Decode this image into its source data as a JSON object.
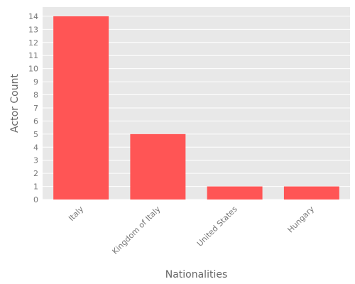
{
  "chart_data": {
    "type": "bar",
    "title": "",
    "xlabel": "Nationalities",
    "ylabel": "Actor Count",
    "categories": [
      "Italy",
      "Kingdom of Italy",
      "United States",
      "Hungary"
    ],
    "values": [
      14,
      5,
      1,
      1
    ],
    "ylim": [
      0,
      14.7
    ],
    "yticks": [
      0,
      1,
      2,
      3,
      4,
      5,
      6,
      7,
      8,
      9,
      10,
      11,
      12,
      13,
      14
    ],
    "grid": true,
    "legend": "none",
    "colors": {
      "bar": "#ff5555",
      "panel_background": "#e8e8e8",
      "grid": "#ffffff",
      "tick_text": "#777777",
      "label_text": "#666666"
    }
  }
}
